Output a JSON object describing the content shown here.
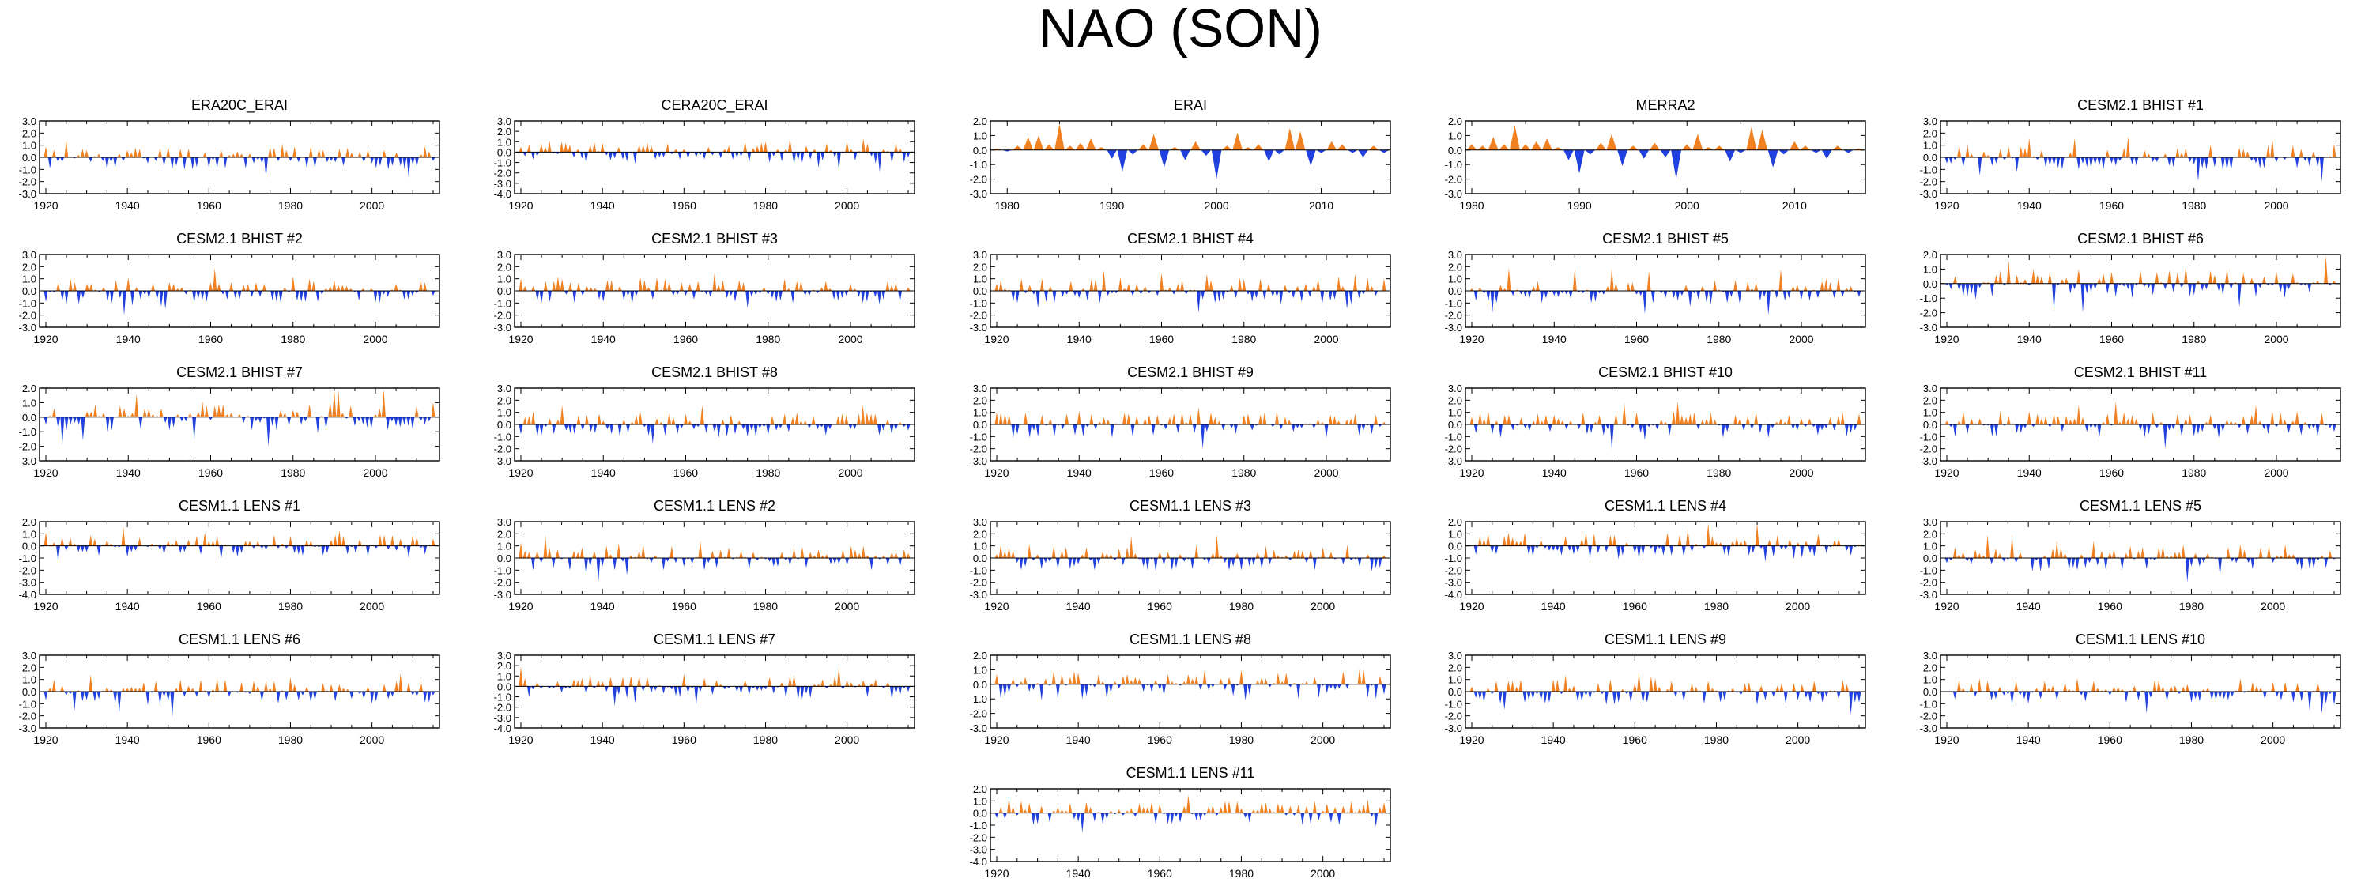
{
  "title": "NAO (SON)",
  "colors": {
    "positive": "#f08020",
    "negative": "#2040e0",
    "axis": "#000000"
  },
  "chart_data": [
    {
      "type": "area",
      "title": "ERA20C_ERAI",
      "x_start": 1920,
      "x_end": 2015,
      "ylim": [
        -3.0,
        3.0
      ],
      "yticks": [
        "3.0",
        "2.0",
        "1.0",
        "0.0",
        "-1.0",
        "-2.0",
        "-3.0"
      ],
      "xticks": [
        "1920",
        "1940",
        "1960",
        "1980",
        "2000"
      ],
      "seed": 11
    },
    {
      "type": "area",
      "title": "CERA20C_ERAI",
      "x_start": 1920,
      "x_end": 2015,
      "ylim": [
        -4.0,
        3.0
      ],
      "yticks": [
        "3.0",
        "2.0",
        "1.0",
        "0.0",
        "-1.0",
        "-2.0",
        "-3.0",
        "-4.0"
      ],
      "xticks": [
        "1920",
        "1940",
        "1960",
        "1980",
        "2000"
      ],
      "seed": 12
    },
    {
      "type": "area",
      "title": "ERAI",
      "x_start": 1979,
      "x_end": 2016,
      "ylim": [
        -3.0,
        2.0
      ],
      "yticks": [
        "2.0",
        "1.0",
        "0.0",
        "-1.0",
        "-2.0",
        "-3.0"
      ],
      "xticks": [
        "1980",
        "1990",
        "2000",
        "2010"
      ],
      "values": [
        0.1,
        -0.1,
        0.3,
        0.9,
        1.0,
        0.4,
        1.8,
        0.3,
        0.5,
        0.8,
        0.2,
        -0.6,
        -1.5,
        -0.3,
        0.4,
        1.1,
        -1.2,
        0.2,
        -0.7,
        0.6,
        -0.4,
        -2.0,
        0.3,
        1.2,
        0.2,
        0.4,
        -0.8,
        -0.3,
        1.5,
        1.3,
        -1.1,
        -0.2,
        0.6,
        0.4,
        -0.2,
        -0.5,
        0.3,
        -0.2
      ]
    },
    {
      "type": "area",
      "title": "MERRA2",
      "x_start": 1980,
      "x_end": 2016,
      "ylim": [
        -3.0,
        2.0
      ],
      "yticks": [
        "2.0",
        "1.0",
        "0.0",
        "-1.0",
        "-2.0",
        "-3.0"
      ],
      "xticks": [
        "1980",
        "1990",
        "2000",
        "2010"
      ],
      "values": [
        0.4,
        0.3,
        0.9,
        0.4,
        1.7,
        0.4,
        0.6,
        0.8,
        0.2,
        -0.7,
        -1.6,
        -0.3,
        0.5,
        1.1,
        -1.1,
        0.3,
        -0.6,
        0.5,
        -0.5,
        -2.0,
        0.4,
        1.1,
        0.2,
        0.3,
        -0.8,
        -0.2,
        1.6,
        1.4,
        -1.2,
        -0.3,
        0.6,
        0.3,
        -0.2,
        -0.6,
        0.3,
        -0.2,
        0.1
      ]
    },
    {
      "type": "area",
      "title": "CESM2.1 BHIST #1",
      "x_start": 1920,
      "x_end": 2014,
      "ylim": [
        -3.0,
        3.0
      ],
      "yticks": [
        "3.0",
        "2.0",
        "1.0",
        "0.0",
        "-1.0",
        "-2.0",
        "-3.0"
      ],
      "xticks": [
        "1920",
        "1940",
        "1960",
        "1980",
        "2000"
      ],
      "seed": 21
    },
    {
      "type": "area",
      "title": "CESM2.1 BHIST #2",
      "x_start": 1920,
      "x_end": 2014,
      "ylim": [
        -3.0,
        3.0
      ],
      "yticks": [
        "3.0",
        "2.0",
        "1.0",
        "0.0",
        "-1.0",
        "-2.0",
        "-3.0"
      ],
      "xticks": [
        "1920",
        "1940",
        "1960",
        "1980",
        "2000"
      ],
      "seed": 22
    },
    {
      "type": "area",
      "title": "CESM2.1 BHIST #3",
      "x_start": 1920,
      "x_end": 2014,
      "ylim": [
        -3.0,
        3.0
      ],
      "yticks": [
        "3.0",
        "2.0",
        "1.0",
        "0.0",
        "-1.0",
        "-2.0",
        "-3.0"
      ],
      "xticks": [
        "1920",
        "1940",
        "1960",
        "1980",
        "2000"
      ],
      "seed": 23
    },
    {
      "type": "area",
      "title": "CESM2.1 BHIST #4",
      "x_start": 1920,
      "x_end": 2014,
      "ylim": [
        -3.0,
        3.0
      ],
      "yticks": [
        "3.0",
        "2.0",
        "1.0",
        "0.0",
        "-1.0",
        "-2.0",
        "-3.0"
      ],
      "xticks": [
        "1920",
        "1940",
        "1960",
        "1980",
        "2000"
      ],
      "seed": 24
    },
    {
      "type": "area",
      "title": "CESM2.1 BHIST #5",
      "x_start": 1920,
      "x_end": 2014,
      "ylim": [
        -3.0,
        3.0
      ],
      "yticks": [
        "3.0",
        "2.0",
        "1.0",
        "0.0",
        "-1.0",
        "-2.0",
        "-3.0"
      ],
      "xticks": [
        "1920",
        "1940",
        "1960",
        "1980",
        "2000"
      ],
      "seed": 25
    },
    {
      "type": "area",
      "title": "CESM2.1 BHIST #6",
      "x_start": 1920,
      "x_end": 2014,
      "ylim": [
        -3.0,
        2.0
      ],
      "yticks": [
        "2.0",
        "1.0",
        "0.0",
        "-1.0",
        "-2.0",
        "-3.0"
      ],
      "xticks": [
        "1920",
        "1940",
        "1960",
        "1980",
        "2000"
      ],
      "seed": 26
    },
    {
      "type": "area",
      "title": "CESM2.1 BHIST #7",
      "x_start": 1920,
      "x_end": 2014,
      "ylim": [
        -3.0,
        2.0
      ],
      "yticks": [
        "2.0",
        "1.0",
        "0.0",
        "-1.0",
        "-2.0",
        "-3.0"
      ],
      "xticks": [
        "1920",
        "1940",
        "1960",
        "1980",
        "2000"
      ],
      "seed": 27
    },
    {
      "type": "area",
      "title": "CESM2.1 BHIST #8",
      "x_start": 1920,
      "x_end": 2014,
      "ylim": [
        -3.0,
        3.0
      ],
      "yticks": [
        "3.0",
        "2.0",
        "1.0",
        "0.0",
        "-1.0",
        "-2.0",
        "-3.0"
      ],
      "xticks": [
        "1920",
        "1940",
        "1960",
        "1980",
        "2000"
      ],
      "seed": 28
    },
    {
      "type": "area",
      "title": "CESM2.1 BHIST #9",
      "x_start": 1920,
      "x_end": 2014,
      "ylim": [
        -3.0,
        3.0
      ],
      "yticks": [
        "3.0",
        "2.0",
        "1.0",
        "0.0",
        "-1.0",
        "-2.0",
        "-3.0"
      ],
      "xticks": [
        "1920",
        "1940",
        "1960",
        "1980",
        "2000"
      ],
      "seed": 29
    },
    {
      "type": "area",
      "title": "CESM2.1 BHIST #10",
      "x_start": 1920,
      "x_end": 2014,
      "ylim": [
        -3.0,
        3.0
      ],
      "yticks": [
        "3.0",
        "2.0",
        "1.0",
        "0.0",
        "-1.0",
        "-2.0",
        "-3.0"
      ],
      "xticks": [
        "1920",
        "1940",
        "1960",
        "1980",
        "2000"
      ],
      "seed": 30
    },
    {
      "type": "area",
      "title": "CESM2.1 BHIST #11",
      "x_start": 1920,
      "x_end": 2014,
      "ylim": [
        -3.0,
        3.0
      ],
      "yticks": [
        "3.0",
        "2.0",
        "1.0",
        "0.0",
        "-1.0",
        "-2.0",
        "-3.0"
      ],
      "xticks": [
        "1920",
        "1940",
        "1960",
        "1980",
        "2000"
      ],
      "seed": 31
    },
    {
      "type": "area",
      "title": "CESM1.1 LENS #1",
      "x_start": 1920,
      "x_end": 2015,
      "ylim": [
        -4.0,
        2.0
      ],
      "yticks": [
        "2.0",
        "1.0",
        "0.0",
        "-1.0",
        "-2.0",
        "-3.0",
        "-4.0"
      ],
      "xticks": [
        "1920",
        "1940",
        "1960",
        "1980",
        "2000"
      ],
      "seed": 41
    },
    {
      "type": "area",
      "title": "CESM1.1 LENS #2",
      "x_start": 1920,
      "x_end": 2015,
      "ylim": [
        -3.0,
        3.0
      ],
      "yticks": [
        "3.0",
        "2.0",
        "1.0",
        "0.0",
        "-1.0",
        "-2.0",
        "-3.0"
      ],
      "xticks": [
        "1920",
        "1940",
        "1960",
        "1980",
        "2000"
      ],
      "seed": 42
    },
    {
      "type": "area",
      "title": "CESM1.1 LENS #3",
      "x_start": 1920,
      "x_end": 2015,
      "ylim": [
        -3.0,
        3.0
      ],
      "yticks": [
        "3.0",
        "2.0",
        "1.0",
        "0.0",
        "-1.0",
        "-2.0",
        "-3.0"
      ],
      "xticks": [
        "1920",
        "1940",
        "1960",
        "1980",
        "2000"
      ],
      "seed": 43
    },
    {
      "type": "area",
      "title": "CESM1.1 LENS #4",
      "x_start": 1920,
      "x_end": 2015,
      "ylim": [
        -4.0,
        2.0
      ],
      "yticks": [
        "2.0",
        "1.0",
        "0.0",
        "-1.0",
        "-2.0",
        "-3.0",
        "-4.0"
      ],
      "xticks": [
        "1920",
        "1940",
        "1960",
        "1980",
        "2000"
      ],
      "seed": 44
    },
    {
      "type": "area",
      "title": "CESM1.1 LENS #5",
      "x_start": 1920,
      "x_end": 2015,
      "ylim": [
        -3.0,
        3.0
      ],
      "yticks": [
        "3.0",
        "2.0",
        "1.0",
        "0.0",
        "-1.0",
        "-2.0",
        "-3.0"
      ],
      "xticks": [
        "1920",
        "1940",
        "1960",
        "1980",
        "2000"
      ],
      "seed": 45
    },
    {
      "type": "area",
      "title": "CESM1.1 LENS #6",
      "x_start": 1920,
      "x_end": 2015,
      "ylim": [
        -3.0,
        3.0
      ],
      "yticks": [
        "3.0",
        "2.0",
        "1.0",
        "0.0",
        "-1.0",
        "-2.0",
        "-3.0"
      ],
      "xticks": [
        "1920",
        "1940",
        "1960",
        "1980",
        "2000"
      ],
      "seed": 46
    },
    {
      "type": "area",
      "title": "CESM1.1 LENS #7",
      "x_start": 1920,
      "x_end": 2015,
      "ylim": [
        -4.0,
        3.0
      ],
      "yticks": [
        "3.0",
        "2.0",
        "1.0",
        "0.0",
        "-1.0",
        "-2.0",
        "-3.0",
        "-4.0"
      ],
      "xticks": [
        "1920",
        "1940",
        "1960",
        "1980",
        "2000"
      ],
      "seed": 47
    },
    {
      "type": "area",
      "title": "CESM1.1 LENS #8",
      "x_start": 1920,
      "x_end": 2015,
      "ylim": [
        -3.0,
        2.0
      ],
      "yticks": [
        "2.0",
        "1.0",
        "0.0",
        "-1.0",
        "-2.0",
        "-3.0"
      ],
      "xticks": [
        "1920",
        "1940",
        "1960",
        "1980",
        "2000"
      ],
      "seed": 48
    },
    {
      "type": "area",
      "title": "CESM1.1 LENS #9",
      "x_start": 1920,
      "x_end": 2015,
      "ylim": [
        -3.0,
        3.0
      ],
      "yticks": [
        "3.0",
        "2.0",
        "1.0",
        "0.0",
        "-1.0",
        "-2.0",
        "-3.0"
      ],
      "xticks": [
        "1920",
        "1940",
        "1960",
        "1980",
        "2000"
      ],
      "seed": 49
    },
    {
      "type": "area",
      "title": "CESM1.1 LENS #10",
      "x_start": 1920,
      "x_end": 2015,
      "ylim": [
        -3.0,
        3.0
      ],
      "yticks": [
        "3.0",
        "2.0",
        "1.0",
        "0.0",
        "-1.0",
        "-2.0",
        "-3.0"
      ],
      "xticks": [
        "1920",
        "1940",
        "1960",
        "1980",
        "2000"
      ],
      "seed": 50
    },
    {
      "type": "area",
      "title": "CESM1.1 LENS #11",
      "x_start": 1920,
      "x_end": 2015,
      "ylim": [
        -4.0,
        2.0
      ],
      "yticks": [
        "2.0",
        "1.0",
        "0.0",
        "-1.0",
        "-2.0",
        "-3.0",
        "-4.0"
      ],
      "xticks": [
        "1920",
        "1940",
        "1960",
        "1980",
        "2000"
      ],
      "seed": 51
    }
  ]
}
